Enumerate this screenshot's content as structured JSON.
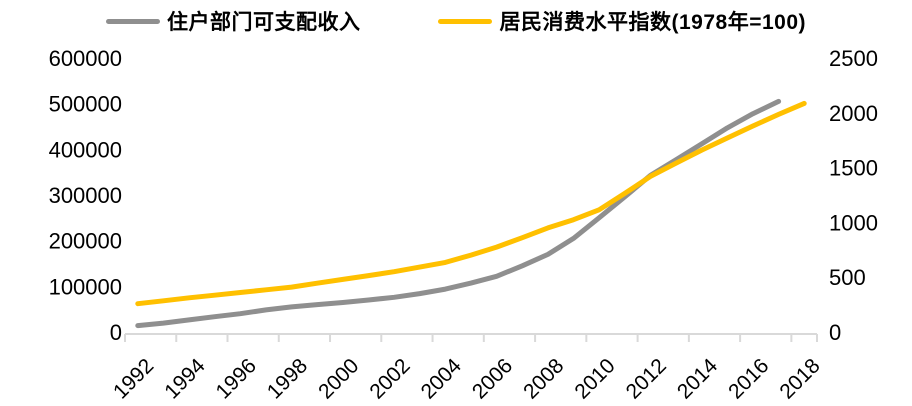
{
  "legend": {
    "items": [
      {
        "label": "住户部门可支配收入",
        "color": "#8f8f8f"
      },
      {
        "label": "居民消费水平指数(1978年=100)",
        "color": "#ffc000"
      }
    ]
  },
  "chart_data": {
    "type": "line",
    "title": "",
    "x": [
      1992,
      1993,
      1994,
      1995,
      1996,
      1997,
      1998,
      1999,
      2000,
      2001,
      2002,
      2003,
      2004,
      2005,
      2006,
      2007,
      2008,
      2009,
      2010,
      2011,
      2012,
      2013,
      2014,
      2015,
      2016,
      2017,
      2018
    ],
    "x_tick_labels": [
      "1992",
      "1994",
      "1996",
      "1998",
      "2000",
      "2002",
      "2004",
      "2006",
      "2008",
      "2010",
      "2012",
      "2014",
      "2016",
      "2018"
    ],
    "series": [
      {
        "name": "住户部门可支配收入",
        "axis": "left",
        "color": "#8f8f8f",
        "values": [
          14000,
          19500,
          26500,
          33500,
          40000,
          48500,
          55000,
          60000,
          64500,
          70000,
          76000,
          84000,
          94000,
          107000,
          122000,
          145000,
          170000,
          205000,
          250000,
          296000,
          343000,
          377000,
          412000,
          447000,
          478000,
          505000,
          null
        ]
      },
      {
        "name": "居民消费水平指数(1978年=100)",
        "axis": "right",
        "color": "#ffc000",
        "values": [
          258,
          285,
          312,
          336,
          360,
          385,
          410,
          445,
          480,
          515,
          550,
          592,
          635,
          702,
          775,
          860,
          950,
          1025,
          1115,
          1265,
          1420,
          1540,
          1660,
          1770,
          1880,
          1985,
          2086
        ]
      }
    ],
    "left_axis": {
      "min": 0,
      "max": 600000,
      "ticks": [
        0,
        100000,
        200000,
        300000,
        400000,
        500000,
        600000
      ]
    },
    "right_axis": {
      "min": 0,
      "max": 2500,
      "ticks": [
        0,
        500,
        1000,
        1500,
        2000,
        2500
      ]
    },
    "grid": false,
    "legend_position": "top",
    "axis_line_color": "#d9d9d9"
  }
}
